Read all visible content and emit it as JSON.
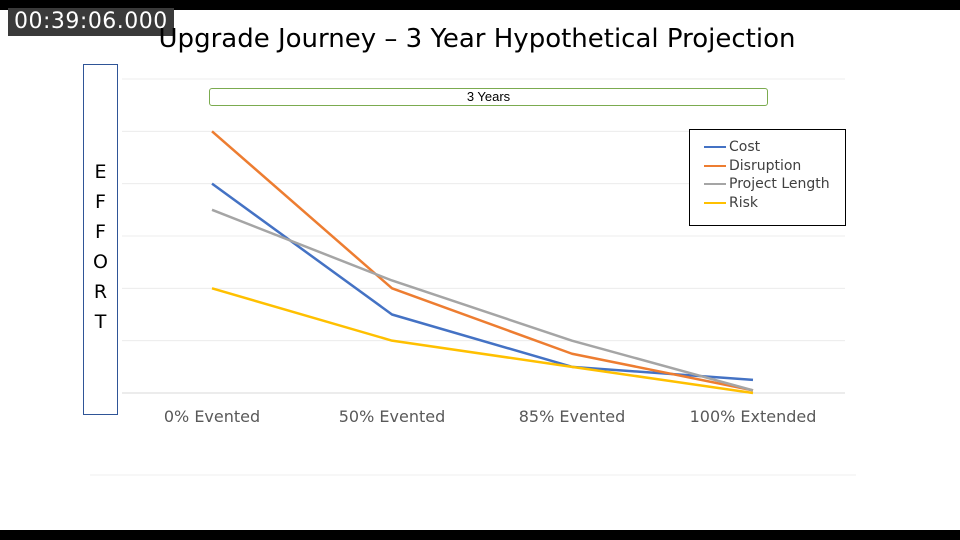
{
  "player": {
    "timecode": "00:39:06.000"
  },
  "chart_data": {
    "type": "line",
    "title": "Upgrade Journey – 3 Year Hypothetical Projection",
    "ylabel": "EFFORT",
    "xlabel": "",
    "annotation": "3 Years",
    "categories": [
      "0% Evented",
      "50% Evented",
      "85% Evented",
      "100% Extended"
    ],
    "ylim": [
      0,
      6
    ],
    "grid": true,
    "legend_position": "top-right",
    "series": [
      {
        "name": "Cost",
        "color": "#4472c4",
        "values": [
          4.0,
          1.5,
          0.5,
          0.25
        ]
      },
      {
        "name": "Disruption",
        "color": "#ed7d31",
        "values": [
          5.0,
          2.0,
          0.75,
          0.05
        ]
      },
      {
        "name": "Project Length",
        "color": "#a5a5a5",
        "values": [
          3.5,
          2.15,
          1.0,
          0.05
        ]
      },
      {
        "name": "Risk",
        "color": "#ffc000",
        "values": [
          2.0,
          1.0,
          0.5,
          0.0
        ]
      }
    ]
  }
}
